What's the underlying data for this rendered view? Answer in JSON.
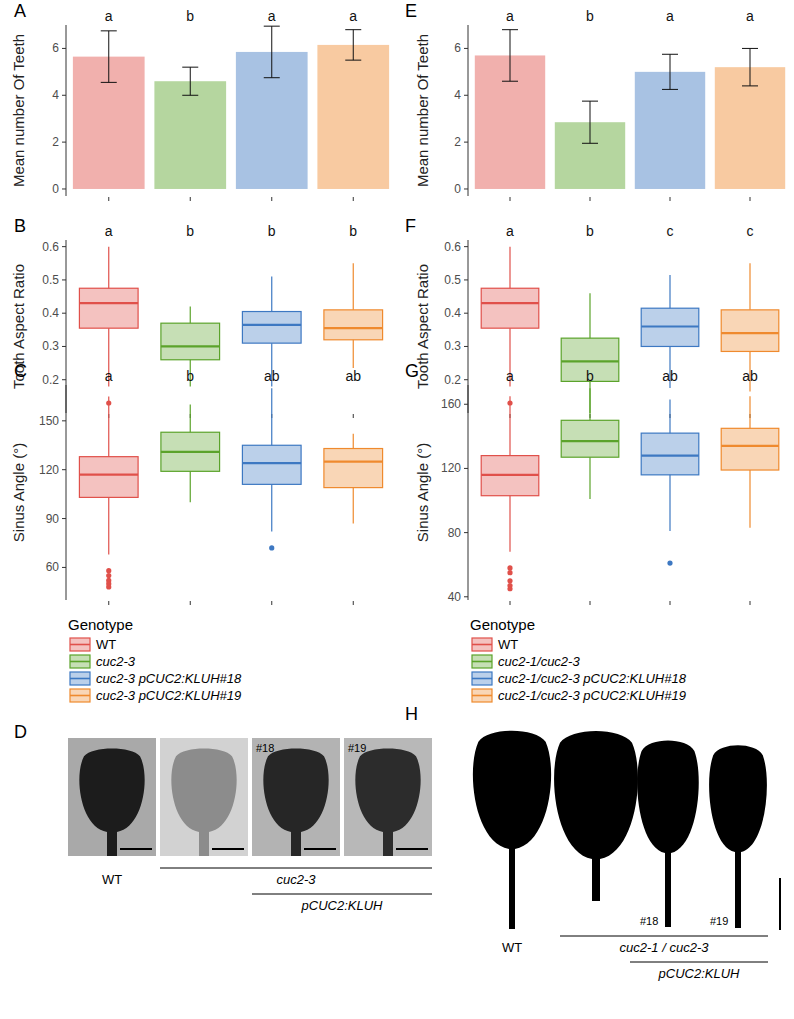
{
  "chart_data": [
    {
      "type": "bar",
      "title": "A",
      "ylabel": "Mean number Of Teeth",
      "categories": [
        null,
        null,
        null,
        null
      ],
      "values": [
        5.65,
        4.6,
        5.85,
        6.15
      ],
      "errors": [
        1.1,
        0.6,
        1.1,
        0.65
      ],
      "colors": [
        "#e0504a",
        "#5ba32b",
        "#3d78c2",
        "#ef8a2e"
      ],
      "annotations": [
        "a",
        "b",
        "a",
        "a"
      ],
      "ylim": [
        -0.3,
        7.0
      ],
      "yticks": [
        0,
        2,
        4,
        6
      ],
      "tick_labels": "y"
    },
    {
      "type": "box",
      "title": "B",
      "ylabel": "Tooth Aspect Ratio",
      "categories": [
        null,
        null,
        null,
        null
      ],
      "boxes": [
        {
          "min": 0.18,
          "q1": 0.355,
          "median": 0.43,
          "q3": 0.475,
          "max": 0.6,
          "outliers": [
            0.13
          ]
        },
        {
          "min": 0.18,
          "q1": 0.26,
          "median": 0.3,
          "q3": 0.37,
          "max": 0.42,
          "outliers": []
        },
        {
          "min": 0.18,
          "q1": 0.31,
          "median": 0.365,
          "q3": 0.405,
          "max": 0.51,
          "outliers": []
        },
        {
          "min": 0.235,
          "q1": 0.32,
          "median": 0.355,
          "q3": 0.41,
          "max": 0.55,
          "outliers": []
        }
      ],
      "colors": [
        "#e0504a",
        "#5ba32b",
        "#3d78c2",
        "#ef8a2e"
      ],
      "annotations": [
        "a",
        "b",
        "b",
        "b"
      ],
      "ylim": [
        0.1,
        0.62
      ],
      "yticks": [
        0.2,
        0.3,
        0.4,
        0.5,
        0.6
      ],
      "tick_labels": "y"
    },
    {
      "type": "box",
      "title": "C",
      "ylabel": "Sinus Angle (°)",
      "categories": [
        null,
        null,
        null,
        null
      ],
      "boxes": [
        {
          "min": 68,
          "q1": 103,
          "median": 117,
          "q3": 128,
          "max": 165,
          "outliers": [
            58,
            55,
            52,
            50,
            48
          ]
        },
        {
          "min": 100,
          "q1": 119,
          "median": 131,
          "q3": 143,
          "max": 160,
          "outliers": []
        },
        {
          "min": 82,
          "q1": 111,
          "median": 124,
          "q3": 135,
          "max": 170,
          "outliers": [
            72
          ]
        },
        {
          "min": 87,
          "q1": 109,
          "median": 125,
          "q3": 133,
          "max": 142,
          "outliers": []
        }
      ],
      "colors": [
        "#e0504a",
        "#5ba32b",
        "#3d78c2",
        "#ef8a2e"
      ],
      "annotations": [
        "a",
        "b",
        "ab",
        "ab"
      ],
      "ylim": [
        40,
        172
      ],
      "yticks": [
        60,
        90,
        120,
        150
      ],
      "tick_labels": "y"
    },
    {
      "type": "bar",
      "title": "E",
      "ylabel": "Mean number Of Teeth",
      "categories": [
        null,
        null,
        null,
        null
      ],
      "values": [
        5.7,
        2.85,
        5.0,
        5.2
      ],
      "errors": [
        1.1,
        0.9,
        0.75,
        0.8
      ],
      "colors": [
        "#e0504a",
        "#5ba32b",
        "#3d78c2",
        "#ef8a2e"
      ],
      "annotations": [
        "a",
        "b",
        "a",
        "a"
      ],
      "ylim": [
        -0.3,
        7.0
      ],
      "yticks": [
        0,
        2,
        4,
        6
      ],
      "tick_labels": "y"
    },
    {
      "type": "box",
      "title": "F",
      "ylabel": "Tooth Aspect Ratio",
      "categories": [
        null,
        null,
        null,
        null
      ],
      "boxes": [
        {
          "min": 0.18,
          "q1": 0.355,
          "median": 0.43,
          "q3": 0.475,
          "max": 0.6,
          "outliers": [
            0.13
          ]
        },
        {
          "min": 0.1,
          "q1": 0.195,
          "median": 0.255,
          "q3": 0.325,
          "max": 0.46,
          "outliers": []
        },
        {
          "min": 0.175,
          "q1": 0.3,
          "median": 0.36,
          "q3": 0.415,
          "max": 0.515,
          "outliers": []
        },
        {
          "min": 0.165,
          "q1": 0.285,
          "median": 0.34,
          "q3": 0.41,
          "max": 0.55,
          "outliers": []
        }
      ],
      "colors": [
        "#e0504a",
        "#5ba32b",
        "#3d78c2",
        "#ef8a2e"
      ],
      "annotations": [
        "a",
        "b",
        "c",
        "c"
      ],
      "ylim": [
        0.1,
        0.62
      ],
      "yticks": [
        0.2,
        0.3,
        0.4,
        0.5,
        0.6
      ],
      "tick_labels": "y"
    },
    {
      "type": "box",
      "title": "G",
      "ylabel": "Sinus Angle (°)",
      "categories": [
        null,
        null,
        null,
        null
      ],
      "boxes": [
        {
          "min": 68,
          "q1": 103,
          "median": 116,
          "q3": 128,
          "max": 165,
          "outliers": [
            58,
            55,
            50,
            47,
            45
          ]
        },
        {
          "min": 101,
          "q1": 127,
          "median": 137,
          "q3": 150,
          "max": 170,
          "outliers": []
        },
        {
          "min": 81,
          "q1": 116,
          "median": 128,
          "q3": 142,
          "max": 163,
          "outliers": [
            61
          ]
        },
        {
          "min": 83,
          "q1": 119,
          "median": 134,
          "q3": 145,
          "max": 165,
          "outliers": []
        }
      ],
      "colors": [
        "#e0504a",
        "#5ba32b",
        "#3d78c2",
        "#ef8a2e"
      ],
      "annotations": [
        "a",
        "b",
        "ab",
        "ab"
      ],
      "ylim": [
        38,
        172
      ],
      "yticks": [
        40,
        80,
        120,
        160
      ],
      "tick_labels": "y"
    }
  ],
  "legends": [
    {
      "title": "Genotype",
      "items": [
        {
          "name": "WT",
          "color": "#e0504a"
        },
        {
          "name": "cuc2-3",
          "color": "#5ba32b"
        },
        {
          "name": "cuc2-3 pCUC2:KLUH#18",
          "color": "#3d78c2"
        },
        {
          "name": "cuc2-3 pCUC2:KLUH#19",
          "color": "#ef8a2e"
        }
      ]
    },
    {
      "title": "Genotype",
      "items": [
        {
          "name": "WT",
          "color": "#e0504a"
        },
        {
          "name": "cuc2-1/cuc2-3",
          "color": "#5ba32b"
        },
        {
          "name": "cuc2-1/cuc2-3 pCUC2:KLUH#18",
          "color": "#3d78c2"
        },
        {
          "name": "cuc2-1/cuc2-3 pCUC2:KLUH#19",
          "color": "#ef8a2e"
        }
      ]
    }
  ],
  "images": [
    {
      "title": "D",
      "tags": [
        "#18",
        "#19"
      ],
      "captions": [
        "WT",
        "cuc2-3",
        "pCUC2:KLUH"
      ]
    },
    {
      "title": "H",
      "tags": [
        "#18",
        "#19"
      ],
      "captions": [
        "WT",
        "cuc2-1 / cuc2-3",
        "pCUC2:KLUH"
      ]
    }
  ]
}
